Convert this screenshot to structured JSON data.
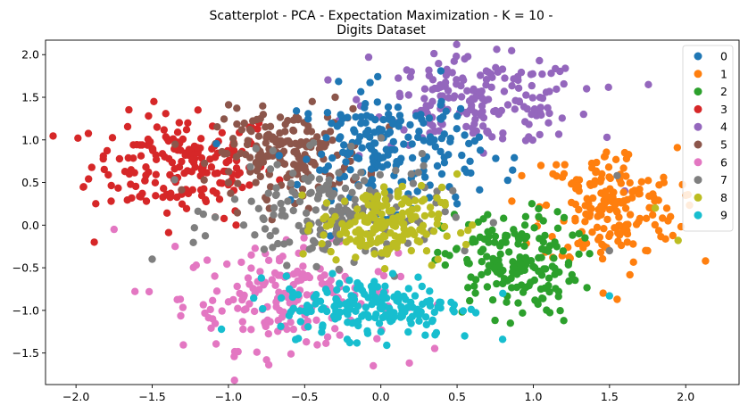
{
  "chart_data": {
    "type": "scatter",
    "title_lines": [
      "Scatterplot - PCA - Expectation Maximization - K = 10 -",
      "Digits Dataset"
    ],
    "xlabel": "",
    "ylabel": "",
    "xlim": [
      -2.2,
      2.35
    ],
    "ylim": [
      -1.87,
      2.17
    ],
    "x_ticks": [
      -2.0,
      -1.5,
      -1.0,
      -0.5,
      0.0,
      0.5,
      1.0,
      1.5,
      2.0
    ],
    "x_tick_labels": [
      "−2.0",
      "−1.5",
      "−1.0",
      "−0.5",
      "0.0",
      "0.5",
      "1.0",
      "1.5",
      "2.0"
    ],
    "y_ticks": [
      -1.5,
      -1.0,
      -0.5,
      0.0,
      0.5,
      1.0,
      1.5,
      2.0
    ],
    "y_tick_labels": [
      "−1.5",
      "−1.0",
      "−0.5",
      "0.0",
      "0.5",
      "1.0",
      "1.5",
      "2.0"
    ],
    "grid": false,
    "legend_position": "top-right",
    "series": [
      {
        "name": "0",
        "color": "#1f77b4",
        "approx_center": [
          0.05,
          0.9
        ],
        "approx_spread": [
          0.3,
          0.35
        ],
        "approx_count": 180,
        "points": [
          [
            -0.35,
            1.32
          ],
          [
            -0.1,
            1.2
          ],
          [
            0.0,
            1.05
          ],
          [
            0.15,
            0.95
          ],
          [
            0.3,
            0.8
          ],
          [
            0.4,
            0.6
          ],
          [
            0.1,
            0.7
          ],
          [
            -0.2,
            0.9
          ],
          [
            0.25,
            1.1
          ],
          [
            0.45,
            0.45
          ],
          [
            0.5,
            0.25
          ],
          [
            0.2,
            0.55
          ],
          [
            -0.05,
            0.75
          ],
          [
            0.35,
            1.0
          ],
          [
            0.05,
            1.3
          ]
        ]
      },
      {
        "name": "1",
        "color": "#ff7f0e",
        "approx_center": [
          1.5,
          0.2
        ],
        "approx_spread": [
          0.22,
          0.35
        ],
        "approx_count": 180,
        "points": [
          [
            2.13,
            -0.42
          ],
          [
            1.55,
            -0.87
          ],
          [
            2.0,
            0.35
          ],
          [
            1.6,
            0.85
          ],
          [
            1.3,
            0.4
          ],
          [
            1.75,
            -0.3
          ],
          [
            1.2,
            0.05
          ],
          [
            1.45,
            0.6
          ],
          [
            1.9,
            0.1
          ],
          [
            1.05,
            0.7
          ]
        ]
      },
      {
        "name": "2",
        "color": "#2ca02c",
        "approx_center": [
          0.85,
          -0.45
        ],
        "approx_spread": [
          0.22,
          0.3
        ],
        "approx_count": 170,
        "points": [
          [
            1.2,
            -1.12
          ],
          [
            0.85,
            -1.15
          ],
          [
            0.6,
            -0.2
          ],
          [
            1.05,
            -0.75
          ],
          [
            0.7,
            -0.55
          ],
          [
            1.3,
            -0.1
          ],
          [
            0.95,
            0.1
          ]
        ]
      },
      {
        "name": "3",
        "color": "#d62728",
        "approx_center": [
          -1.3,
          0.7
        ],
        "approx_spread": [
          0.3,
          0.3
        ],
        "approx_count": 180,
        "points": [
          [
            -1.88,
            -0.2
          ],
          [
            -1.95,
            0.45
          ],
          [
            -1.2,
            1.35
          ],
          [
            -0.8,
            1.2
          ],
          [
            -1.5,
            0.9
          ],
          [
            -1.1,
            0.4
          ],
          [
            -0.95,
            0.0
          ],
          [
            -1.65,
            0.6
          ]
        ]
      },
      {
        "name": "4",
        "color": "#9467bd",
        "approx_center": [
          0.65,
          1.45
        ],
        "approx_spread": [
          0.35,
          0.25
        ],
        "approx_count": 180,
        "points": [
          [
            -0.08,
            1.97
          ],
          [
            0.55,
            1.95
          ],
          [
            1.33,
            1.3
          ],
          [
            1.35,
            1.6
          ],
          [
            0.2,
            1.8
          ],
          [
            0.9,
            1.7
          ],
          [
            1.1,
            1.2
          ],
          [
            0.4,
            1.4
          ],
          [
            0.7,
            1.1
          ],
          [
            1.6,
            0.4
          ]
        ]
      },
      {
        "name": "5",
        "color": "#8c564b",
        "approx_center": [
          -0.6,
          0.85
        ],
        "approx_spread": [
          0.25,
          0.25
        ],
        "approx_count": 180,
        "points": [
          [
            -1.0,
            0.5
          ],
          [
            -0.45,
            1.45
          ],
          [
            -0.3,
            1.5
          ],
          [
            -0.85,
            1.1
          ],
          [
            -0.6,
            0.6
          ],
          [
            -0.2,
            0.75
          ]
        ]
      },
      {
        "name": "6",
        "color": "#e377c2",
        "approx_center": [
          -0.6,
          -0.85
        ],
        "approx_spread": [
          0.35,
          0.3
        ],
        "approx_count": 180,
        "points": [
          [
            -1.52,
            -0.78
          ],
          [
            -0.75,
            -1.58
          ],
          [
            -0.05,
            -1.65
          ],
          [
            -1.75,
            -0.05
          ],
          [
            -1.35,
            -0.25
          ],
          [
            -1.0,
            -0.9
          ],
          [
            -0.5,
            -1.2
          ],
          [
            -0.85,
            -0.35
          ]
        ]
      },
      {
        "name": "7",
        "color": "#7f7f7f",
        "approx_center": [
          -0.3,
          0.15
        ],
        "approx_spread": [
          0.35,
          0.3
        ],
        "approx_count": 180,
        "points": [
          [
            -1.5,
            -0.4
          ],
          [
            -0.9,
            0.0
          ],
          [
            0.55,
            -0.3
          ],
          [
            0.2,
            0.6
          ],
          [
            -0.4,
            0.4
          ],
          [
            -0.6,
            -0.2
          ],
          [
            1.55,
            0.58
          ],
          [
            1.5,
            -0.3
          ]
        ]
      },
      {
        "name": "8",
        "color": "#bcbd22",
        "approx_center": [
          0.0,
          0.0
        ],
        "approx_spread": [
          0.2,
          0.22
        ],
        "approx_count": 180,
        "points": [
          [
            0.5,
            0.6
          ],
          [
            1.8,
            0.2
          ],
          [
            -0.1,
            0.3
          ],
          [
            0.2,
            -0.3
          ],
          [
            -0.3,
            0.1
          ],
          [
            1.95,
            -0.18
          ],
          [
            0.6,
            0.0
          ]
        ]
      },
      {
        "name": "9",
        "color": "#17becf",
        "approx_center": [
          -0.05,
          -0.95
        ],
        "approx_spread": [
          0.3,
          0.18
        ],
        "approx_count": 180,
        "points": [
          [
            1.5,
            -0.83
          ],
          [
            0.55,
            -1.3
          ],
          [
            -0.6,
            -0.75
          ],
          [
            0.3,
            -0.9
          ],
          [
            -0.3,
            -1.1
          ],
          [
            0.0,
            -1.25
          ],
          [
            0.8,
            -0.8
          ]
        ]
      }
    ]
  }
}
